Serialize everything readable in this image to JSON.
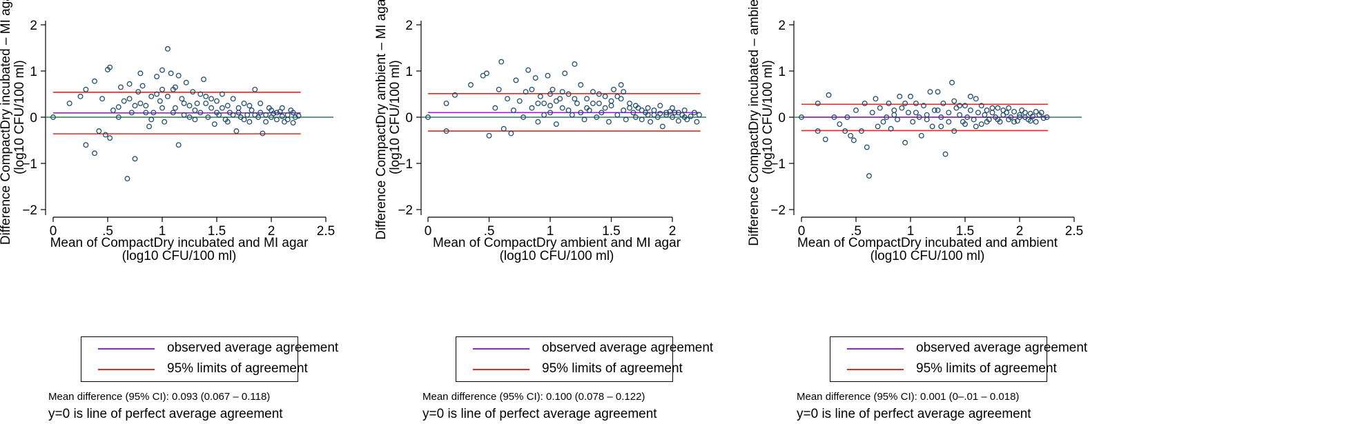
{
  "colors": {
    "mean": "#a020c8",
    "limits": "#e8261c",
    "zero": "#2e7d57",
    "marker": "#1f4e6e",
    "axis": "#000000"
  },
  "legend": {
    "mean_label": "observed average agreement",
    "limits_label": "95% limits of agreement"
  },
  "footnote": "y=0 is line of perfect average agreement",
  "chart_data": [
    {
      "type": "scatter",
      "ylabel_line1": "Difference CompactDry incubated – MI agar",
      "ylabel_line2": "(log10 CFU/100 ml)",
      "xlabel_line1": "Mean of CompactDry incubated and MI agar",
      "xlabel_line2": "(log10 CFU/100 ml)",
      "xlim": [
        0,
        2.5
      ],
      "ylim": [
        -2,
        2
      ],
      "xticks": [
        0,
        0.5,
        1,
        1.5,
        2,
        2.5
      ],
      "xtick_labels": [
        "0",
        ".5",
        "1",
        "1.5",
        "2",
        "2.5"
      ],
      "yticks": [
        -2,
        -1,
        0,
        1,
        2
      ],
      "ytick_labels": [
        "−2",
        "−1",
        "0",
        "1",
        "2"
      ],
      "mean_diff": 0.093,
      "loa_lower": -0.36,
      "loa_upper": 0.54,
      "line_x_end": 2.27,
      "mean_text": "Mean difference (95% CI): 0.093 (0.067 – 0.118)",
      "points": [
        [
          0,
          0
        ],
        [
          0.15,
          0.3
        ],
        [
          0.25,
          0.45
        ],
        [
          0.3,
          0.6
        ],
        [
          0.3,
          -0.6
        ],
        [
          0.38,
          -0.78
        ],
        [
          0.38,
          0.78
        ],
        [
          0.42,
          -0.3
        ],
        [
          0.45,
          0.4
        ],
        [
          0.48,
          -0.38
        ],
        [
          0.5,
          1.03
        ],
        [
          0.52,
          1.08
        ],
        [
          0.52,
          -0.45
        ],
        [
          0.55,
          0.15
        ],
        [
          0.6,
          0.22
        ],
        [
          0.62,
          0.65
        ],
        [
          0.65,
          0.35
        ],
        [
          0.68,
          -1.33
        ],
        [
          0.7,
          0.72
        ],
        [
          0.72,
          0.1
        ],
        [
          0.75,
          -0.9
        ],
        [
          0.78,
          0.55
        ],
        [
          0.8,
          0.95
        ],
        [
          0.82,
          0.68
        ],
        [
          0.85,
          0.25
        ],
        [
          0.88,
          -0.2
        ],
        [
          0.9,
          0.45
        ],
        [
          0.92,
          0.1
        ],
        [
          0.95,
          0.88
        ],
        [
          0.98,
          0.35
        ],
        [
          1.0,
          1.02
        ],
        [
          1.02,
          -0.1
        ],
        [
          1.05,
          1.48
        ],
        [
          1.08,
          0.95
        ],
        [
          1.1,
          0.6
        ],
        [
          1.12,
          0.2
        ],
        [
          1.15,
          -0.6
        ],
        [
          1.18,
          0.4
        ],
        [
          1.2,
          0.05
        ],
        [
          1.22,
          0.75
        ],
        [
          1.25,
          0.25
        ],
        [
          1.28,
          0.55
        ],
        [
          1.3,
          -0.05
        ],
        [
          1.32,
          0.3
        ],
        [
          1.35,
          0.1
        ],
        [
          1.38,
          0.82
        ],
        [
          1.4,
          0.45
        ],
        [
          1.42,
          0.0
        ],
        [
          1.45,
          0.2
        ],
        [
          1.48,
          -0.15
        ],
        [
          1.5,
          0.35
        ],
        [
          1.52,
          0.05
        ],
        [
          1.55,
          0.5
        ],
        [
          1.58,
          -0.05
        ],
        [
          1.6,
          0.25
        ],
        [
          1.62,
          0.1
        ],
        [
          1.65,
          0.4
        ],
        [
          1.68,
          -0.3
        ],
        [
          1.7,
          0.2
        ],
        [
          1.72,
          0.0
        ],
        [
          1.75,
          0.3
        ],
        [
          1.78,
          0.05
        ],
        [
          1.8,
          -0.1
        ],
        [
          1.82,
          0.15
        ],
        [
          1.85,
          0.6
        ],
        [
          1.88,
          0.0
        ],
        [
          1.9,
          0.1
        ],
        [
          1.92,
          -0.35
        ],
        [
          1.95,
          0.05
        ],
        [
          1.98,
          0.2
        ],
        [
          2.0,
          0.0
        ],
        [
          2.02,
          0.08
        ],
        [
          2.05,
          -0.05
        ],
        [
          2.08,
          0.12
        ],
        [
          2.1,
          0.02
        ],
        [
          2.12,
          -0.1
        ],
        [
          2.15,
          0.05
        ],
        [
          2.18,
          0.15
        ],
        [
          2.2,
          -0.12
        ],
        [
          2.22,
          0.0
        ],
        [
          2.25,
          0.03
        ],
        [
          0.6,
          0.0
        ],
        [
          0.8,
          0.3
        ],
        [
          0.9,
          -0.05
        ],
        [
          1.0,
          0.2
        ],
        [
          1.05,
          0.45
        ],
        [
          1.12,
          0.65
        ],
        [
          1.2,
          0.3
        ],
        [
          1.3,
          0.15
        ],
        [
          1.4,
          0.3
        ],
        [
          1.5,
          0.1
        ],
        [
          1.55,
          0.2
        ],
        [
          1.6,
          -0.1
        ],
        [
          1.65,
          0.05
        ],
        [
          1.7,
          0.1
        ],
        [
          1.75,
          -0.05
        ],
        [
          1.8,
          0.25
        ],
        [
          1.85,
          0.05
        ],
        [
          1.9,
          0.3
        ],
        [
          1.95,
          -0.1
        ],
        [
          2.0,
          0.15
        ],
        [
          2.05,
          0.1
        ],
        [
          2.1,
          0.2
        ],
        [
          2.15,
          -0.05
        ],
        [
          2.2,
          0.1
        ],
        [
          1.0,
          0.6
        ],
        [
          1.1,
          0.1
        ],
        [
          0.95,
          0.5
        ],
        [
          0.85,
          0.1
        ],
        [
          1.25,
          0.0
        ],
        [
          1.35,
          0.5
        ],
        [
          1.45,
          0.4
        ],
        [
          1.15,
          0.9
        ],
        [
          0.7,
          0.4
        ],
        [
          0.75,
          0.25
        ]
      ]
    },
    {
      "type": "scatter",
      "ylabel_line1": "Difference CompactDry ambient – MI agar",
      "ylabel_line2": "(log10 CFU/100 ml)",
      "xlabel_line1": "Mean of CompactDry ambient and MI agar",
      "xlabel_line2": "(log10 CFU/100 ml)",
      "xlim": [
        0,
        2.3
      ],
      "ylim": [
        -2,
        2
      ],
      "xticks": [
        0,
        0.5,
        1,
        1.5,
        2
      ],
      "xtick_labels": [
        "0",
        ".5",
        "1",
        "1.5",
        "2"
      ],
      "yticks": [
        -2,
        -1,
        0,
        1,
        2
      ],
      "ytick_labels": [
        "−2",
        "−1",
        "0",
        "1",
        "2"
      ],
      "mean_diff": 0.1,
      "loa_lower": -0.3,
      "loa_upper": 0.51,
      "line_x_end": 2.23,
      "mean_text": "Mean difference (95% CI): 0.100 (0.078 – 0.122)",
      "points": [
        [
          0,
          0
        ],
        [
          0.15,
          -0.3
        ],
        [
          0.15,
          0.3
        ],
        [
          0.22,
          0.48
        ],
        [
          0.35,
          0.7
        ],
        [
          0.45,
          0.9
        ],
        [
          0.48,
          0.95
        ],
        [
          0.5,
          -0.4
        ],
        [
          0.55,
          0.2
        ],
        [
          0.58,
          0.6
        ],
        [
          0.6,
          1.2
        ],
        [
          0.62,
          -0.25
        ],
        [
          0.65,
          0.4
        ],
        [
          0.68,
          -0.35
        ],
        [
          0.7,
          0.15
        ],
        [
          0.72,
          0.8
        ],
        [
          0.75,
          0.35
        ],
        [
          0.78,
          0.0
        ],
        [
          0.8,
          0.55
        ],
        [
          0.82,
          1.02
        ],
        [
          0.85,
          0.2
        ],
        [
          0.88,
          0.85
        ],
        [
          0.9,
          -0.1
        ],
        [
          0.92,
          0.45
        ],
        [
          0.95,
          0.3
        ],
        [
          0.98,
          0.9
        ],
        [
          1.0,
          0.1
        ],
        [
          1.02,
          0.6
        ],
        [
          1.05,
          -0.15
        ],
        [
          1.08,
          0.4
        ],
        [
          1.1,
          0.2
        ],
        [
          1.12,
          0.95
        ],
        [
          1.15,
          0.5
        ],
        [
          1.18,
          0.05
        ],
        [
          1.2,
          1.15
        ],
        [
          1.22,
          0.3
        ],
        [
          1.25,
          0.7
        ],
        [
          1.28,
          -0.05
        ],
        [
          1.3,
          0.4
        ],
        [
          1.32,
          0.15
        ],
        [
          1.35,
          0.55
        ],
        [
          1.38,
          0.0
        ],
        [
          1.4,
          0.3
        ],
        [
          1.42,
          0.1
        ],
        [
          1.45,
          0.45
        ],
        [
          1.48,
          -0.1
        ],
        [
          1.5,
          0.25
        ],
        [
          1.52,
          0.6
        ],
        [
          1.55,
          0.05
        ],
        [
          1.58,
          0.4
        ],
        [
          1.6,
          0.15
        ],
        [
          1.62,
          -0.05
        ],
        [
          1.65,
          0.3
        ],
        [
          1.68,
          0.1
        ],
        [
          1.7,
          0.0
        ],
        [
          1.72,
          0.2
        ],
        [
          1.75,
          -0.05
        ],
        [
          1.78,
          0.1
        ],
        [
          1.8,
          0.05
        ],
        [
          1.82,
          -0.1
        ],
        [
          1.85,
          0.15
        ],
        [
          1.88,
          0.0
        ],
        [
          1.9,
          0.08
        ],
        [
          1.92,
          -0.2
        ],
        [
          1.95,
          0.05
        ],
        [
          1.98,
          0.12
        ],
        [
          2.0,
          0.0
        ],
        [
          2.02,
          0.1
        ],
        [
          2.05,
          -0.08
        ],
        [
          2.08,
          0.05
        ],
        [
          2.1,
          0.15
        ],
        [
          2.12,
          -0.05
        ],
        [
          2.15,
          0.02
        ],
        [
          2.18,
          0.1
        ],
        [
          2.2,
          -0.1
        ],
        [
          2.22,
          0.05
        ],
        [
          0.9,
          0.3
        ],
        [
          1.0,
          0.5
        ],
        [
          1.1,
          0.55
        ],
        [
          1.2,
          0.4
        ],
        [
          1.3,
          0.2
        ],
        [
          1.4,
          0.5
        ],
        [
          1.5,
          0.35
        ],
        [
          1.55,
          0.45
        ],
        [
          1.6,
          0.55
        ],
        [
          1.65,
          0.2
        ],
        [
          1.7,
          0.25
        ],
        [
          1.75,
          0.15
        ],
        [
          1.8,
          0.2
        ],
        [
          1.85,
          0.05
        ],
        [
          1.9,
          0.25
        ],
        [
          1.95,
          0.1
        ],
        [
          2.0,
          0.2
        ],
        [
          2.05,
          0.1
        ],
        [
          2.1,
          0.0
        ],
        [
          1.0,
          0.25
        ],
        [
          1.05,
          0.35
        ],
        [
          1.15,
          0.15
        ],
        [
          1.25,
          0.1
        ],
        [
          0.95,
          0.05
        ],
        [
          0.85,
          0.6
        ],
        [
          1.35,
          0.3
        ],
        [
          1.45,
          0.2
        ],
        [
          1.58,
          0.7
        ]
      ]
    },
    {
      "type": "scatter",
      "ylabel_line1": "Difference CompactDry incubated – ambient",
      "ylabel_line2": "(log10 CFU/100 ml)",
      "xlabel_line1": "Mean of CompactDry incubated and ambient",
      "xlabel_line2": "(log10 CFU/100 ml)",
      "xlim": [
        0,
        2.5
      ],
      "ylim": [
        -2,
        2
      ],
      "xticks": [
        0,
        0.5,
        1,
        1.5,
        2,
        2.5
      ],
      "xtick_labels": [
        "0",
        ".5",
        "1",
        "1.5",
        "2",
        "2.5"
      ],
      "yticks": [
        -2,
        -1,
        0,
        1,
        2
      ],
      "ytick_labels": [
        "−2",
        "−1",
        "0",
        "1",
        "2"
      ],
      "mean_diff": 0.001,
      "loa_lower": -0.29,
      "loa_upper": 0.28,
      "line_x_end": 2.26,
      "mean_text": "Mean difference (95% CI): 0.001 (0–.01 – 0.018)",
      "points": [
        [
          0,
          0
        ],
        [
          0.15,
          0.3
        ],
        [
          0.15,
          -0.3
        ],
        [
          0.22,
          -0.48
        ],
        [
          0.25,
          0.48
        ],
        [
          0.3,
          0.0
        ],
        [
          0.35,
          -0.15
        ],
        [
          0.4,
          -0.3
        ],
        [
          0.42,
          0.0
        ],
        [
          0.45,
          -0.4
        ],
        [
          0.48,
          -0.5
        ],
        [
          0.5,
          0.15
        ],
        [
          0.55,
          -0.3
        ],
        [
          0.58,
          0.3
        ],
        [
          0.6,
          -0.65
        ],
        [
          0.62,
          -1.27
        ],
        [
          0.65,
          0.1
        ],
        [
          0.68,
          0.4
        ],
        [
          0.7,
          -0.2
        ],
        [
          0.72,
          0.2
        ],
        [
          0.75,
          -0.1
        ],
        [
          0.78,
          0.0
        ],
        [
          0.8,
          0.3
        ],
        [
          0.82,
          -0.25
        ],
        [
          0.85,
          0.15
        ],
        [
          0.88,
          -0.05
        ],
        [
          0.9,
          0.45
        ],
        [
          0.92,
          0.2
        ],
        [
          0.95,
          -0.55
        ],
        [
          0.98,
          0.1
        ],
        [
          1.0,
          0.45
        ],
        [
          1.02,
          -0.1
        ],
        [
          1.05,
          0.3
        ],
        [
          1.08,
          0.0
        ],
        [
          1.1,
          -0.4
        ],
        [
          1.12,
          0.25
        ],
        [
          1.15,
          0.05
        ],
        [
          1.18,
          0.55
        ],
        [
          1.2,
          -0.2
        ],
        [
          1.22,
          0.15
        ],
        [
          1.25,
          0.55
        ],
        [
          1.28,
          0.0
        ],
        [
          1.3,
          0.3
        ],
        [
          1.32,
          -0.8
        ],
        [
          1.35,
          0.1
        ],
        [
          1.38,
          0.75
        ],
        [
          1.4,
          -0.3
        ],
        [
          1.42,
          0.2
        ],
        [
          1.45,
          0.05
        ],
        [
          1.48,
          -0.1
        ],
        [
          1.5,
          0.25
        ],
        [
          1.52,
          0.0
        ],
        [
          1.55,
          0.45
        ],
        [
          1.58,
          -0.05
        ],
        [
          1.6,
          0.4
        ],
        [
          1.62,
          0.1
        ],
        [
          1.65,
          -0.15
        ],
        [
          1.68,
          0.05
        ],
        [
          1.7,
          0.15
        ],
        [
          1.72,
          -0.05
        ],
        [
          1.75,
          0.1
        ],
        [
          1.78,
          0.0
        ],
        [
          1.8,
          0.2
        ],
        [
          1.82,
          -0.1
        ],
        [
          1.85,
          0.05
        ],
        [
          1.88,
          0.1
        ],
        [
          1.9,
          -0.05
        ],
        [
          1.92,
          0.0
        ],
        [
          1.95,
          0.12
        ],
        [
          1.98,
          -0.08
        ],
        [
          2.0,
          0.05
        ],
        [
          2.02,
          0.15
        ],
        [
          2.05,
          0.0
        ],
        [
          2.08,
          -0.05
        ],
        [
          2.1,
          0.08
        ],
        [
          2.12,
          0.02
        ],
        [
          2.15,
          -0.1
        ],
        [
          2.18,
          0.05
        ],
        [
          2.2,
          0.1
        ],
        [
          2.22,
          -0.02
        ],
        [
          2.25,
          0.0
        ],
        [
          1.05,
          0.1
        ],
        [
          1.15,
          -0.05
        ],
        [
          1.25,
          0.15
        ],
        [
          1.35,
          -0.1
        ],
        [
          1.45,
          0.25
        ],
        [
          1.55,
          0.15
        ],
        [
          1.6,
          -0.2
        ],
        [
          1.65,
          0.25
        ],
        [
          1.7,
          -0.1
        ],
        [
          1.75,
          0.2
        ],
        [
          1.8,
          -0.05
        ],
        [
          1.85,
          0.15
        ],
        [
          1.9,
          0.2
        ],
        [
          1.95,
          -0.1
        ],
        [
          2.0,
          0.0
        ],
        [
          2.05,
          0.1
        ],
        [
          2.1,
          -0.08
        ],
        [
          2.15,
          0.12
        ],
        [
          0.95,
          0.3
        ],
        [
          0.85,
          0.05
        ],
        [
          1.28,
          -0.2
        ],
        [
          1.4,
          0.35
        ],
        [
          1.5,
          -0.15
        ]
      ]
    }
  ]
}
